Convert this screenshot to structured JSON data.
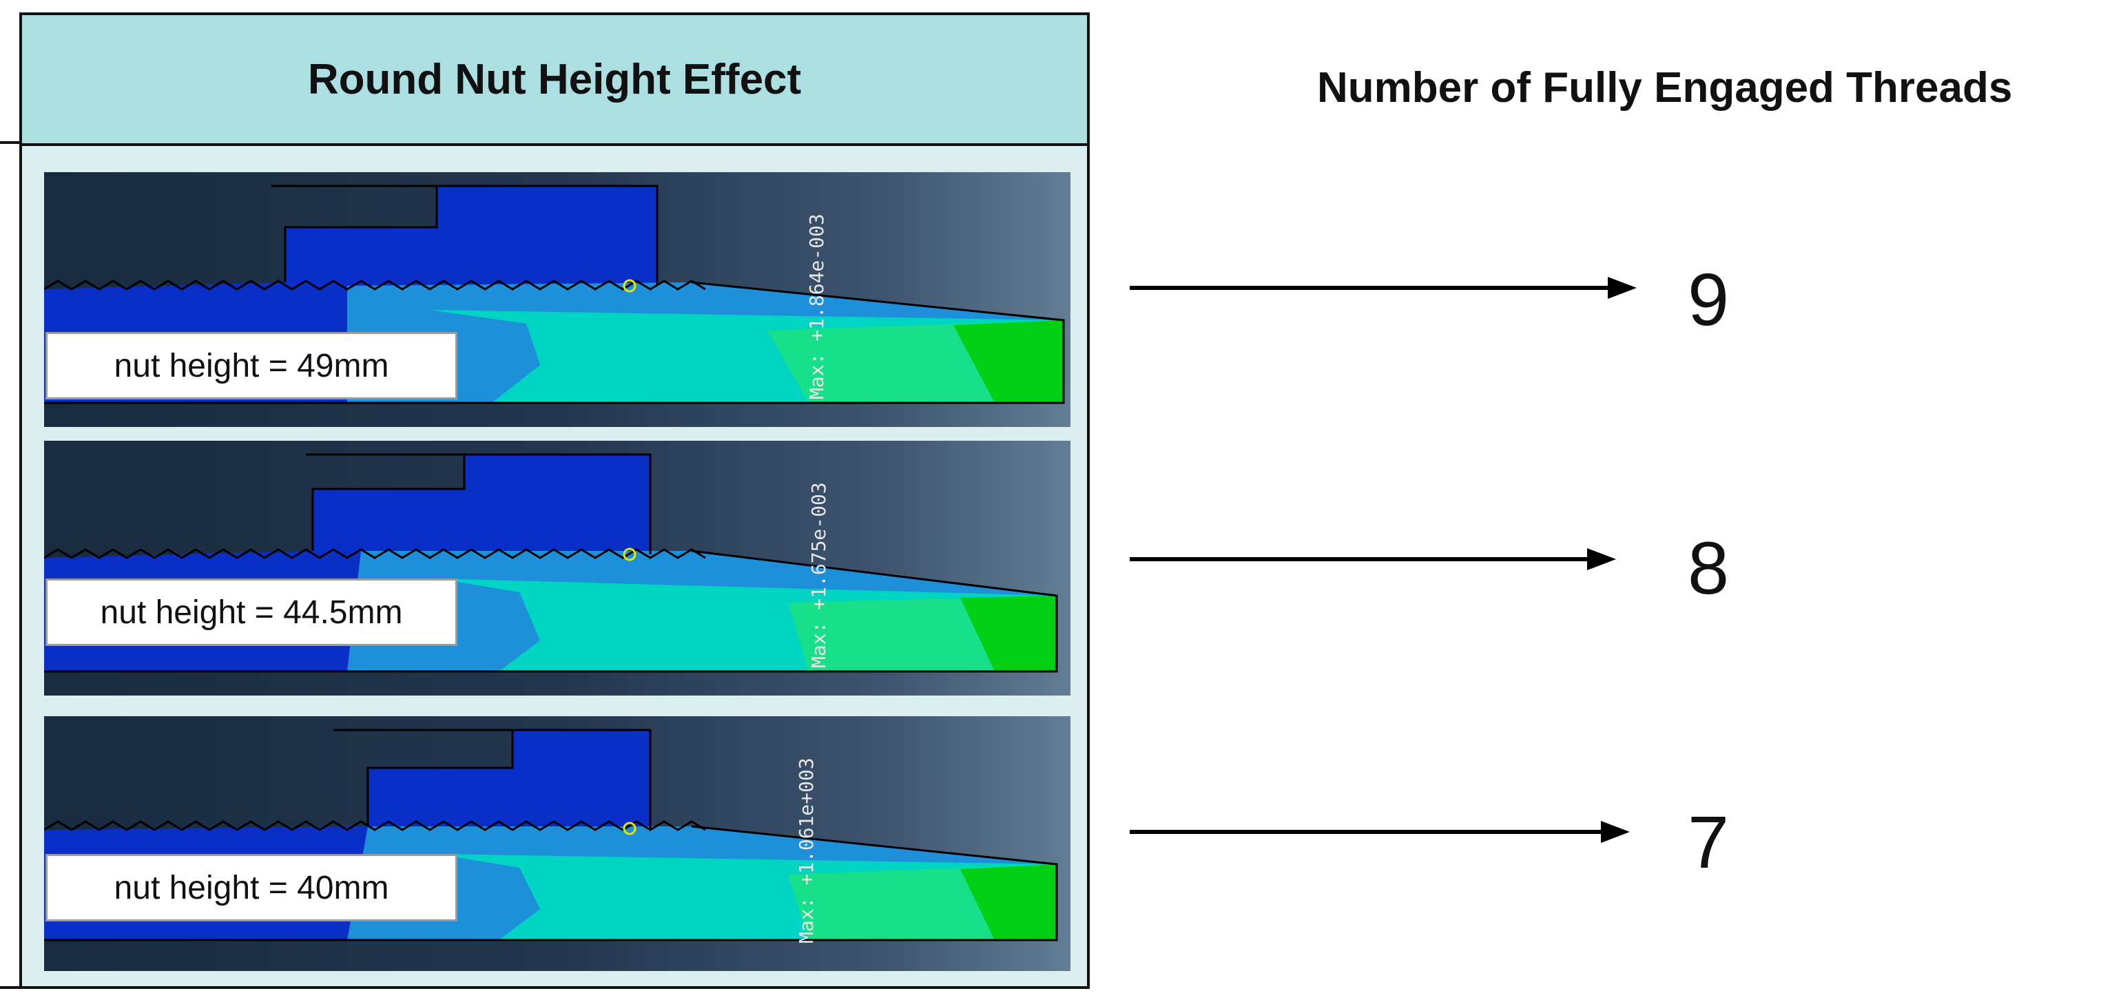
{
  "table": {
    "title": "Round Nut Height Effect",
    "rows": [
      {
        "label": "nut height = 49mm",
        "legend": "Max: +1.864e-003"
      },
      {
        "label": "nut height = 44.5mm",
        "legend": "Max: +1.675e-003"
      },
      {
        "label": "nut height = 40mm",
        "legend": "Max: +1.061e+003"
      }
    ]
  },
  "right": {
    "title": "Number of Fully Engaged Threads",
    "counts": [
      "9",
      "8",
      "7"
    ]
  },
  "colors": {
    "header": "#acdfe2",
    "table_bg": "#dceff0",
    "contour_dark_blue": "#0a2fc7",
    "contour_blue": "#0d52e0",
    "contour_mid": "#1e8fd9",
    "contour_cyan": "#00d4c2",
    "contour_green": "#00cf14"
  }
}
